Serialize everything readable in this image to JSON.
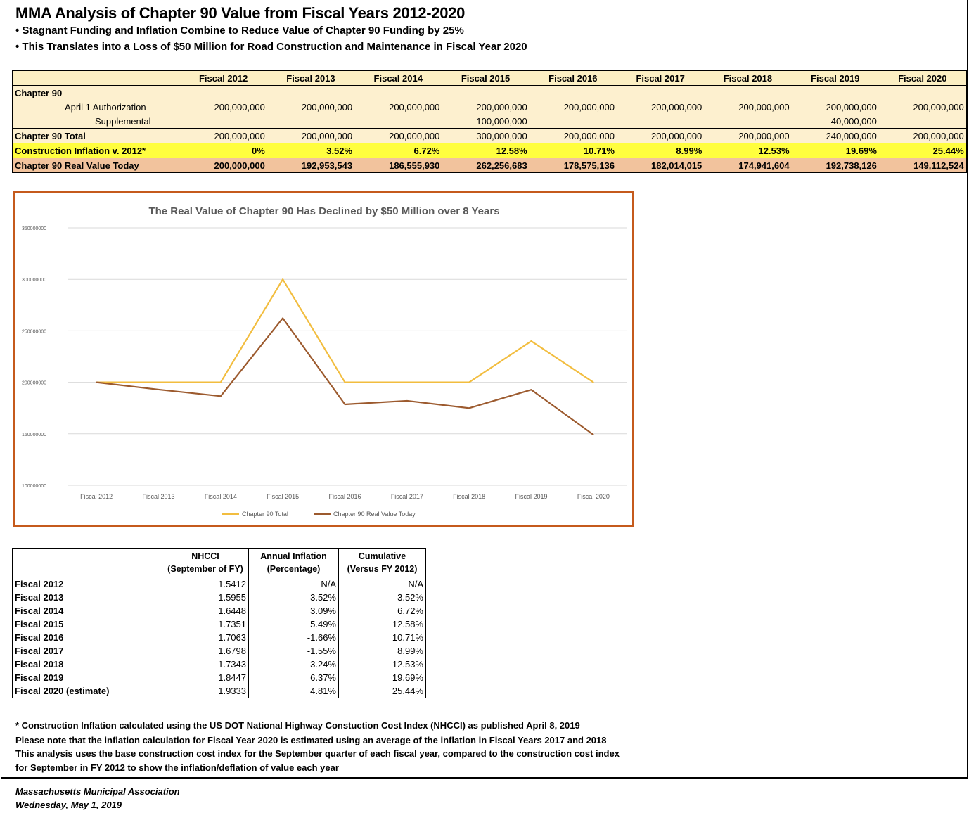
{
  "title": "MMA Analysis of Chapter 90 Value from Fiscal Years 2012-2020",
  "bullets": [
    "• Stagnant Funding and Inflation Combine to Reduce Value of Chapter 90 Funding by 25%",
    "• This Translates into a Loss of $50 Million for Road Construction and Maintenance in Fiscal Year 2020"
  ],
  "main_table": {
    "years": [
      "Fiscal 2012",
      "Fiscal 2013",
      "Fiscal 2014",
      "Fiscal 2015",
      "Fiscal 2016",
      "Fiscal 2017",
      "Fiscal 2018",
      "Fiscal 2019",
      "Fiscal 2020"
    ],
    "section_label": "Chapter 90",
    "april_label": "April 1 Authorization",
    "april": [
      "200,000,000",
      "200,000,000",
      "200,000,000",
      "200,000,000",
      "200,000,000",
      "200,000,000",
      "200,000,000",
      "200,000,000",
      "200,000,000"
    ],
    "supp_label": "Supplemental",
    "supp": [
      "",
      "",
      "",
      "100,000,000",
      "",
      "",
      "",
      "40,000,000",
      ""
    ],
    "total_label": "Chapter 90 Total",
    "total": [
      "200,000,000",
      "200,000,000",
      "200,000,000",
      "300,000,000",
      "200,000,000",
      "200,000,000",
      "200,000,000",
      "240,000,000",
      "200,000,000"
    ],
    "infl_label": "Construction Inflation v. 2012*",
    "infl": [
      "0%",
      "3.52%",
      "6.72%",
      "12.58%",
      "10.71%",
      "8.99%",
      "12.53%",
      "19.69%",
      "25.44%"
    ],
    "real_label": "Chapter 90 Real Value Today",
    "real": [
      "200,000,000",
      "192,953,543",
      "186,555,930",
      "262,256,683",
      "178,575,136",
      "182,014,015",
      "174,941,604",
      "192,738,126",
      "149,112,524"
    ]
  },
  "chart_data": {
    "type": "line",
    "title": "The Real Value of Chapter 90 Has Declined by $50 Million over 8 Years",
    "x": [
      "Fiscal 2012",
      "Fiscal 2013",
      "Fiscal 2014",
      "Fiscal 2015",
      "Fiscal 2016",
      "Fiscal 2017",
      "Fiscal 2018",
      "Fiscal 2019",
      "Fiscal 2020"
    ],
    "series": [
      {
        "name": "Chapter 90 Total",
        "color": "#f2bd3f",
        "values": [
          200000000,
          200000000,
          200000000,
          300000000,
          200000000,
          200000000,
          200000000,
          240000000,
          200000000
        ]
      },
      {
        "name": "Chapter 90 Real Value Today",
        "color": "#9c5a2e",
        "values": [
          200000000,
          192953543,
          186555930,
          262256683,
          178575136,
          182014015,
          174941604,
          192738126,
          149112524
        ]
      }
    ],
    "ylim": [
      100000000,
      350000000
    ],
    "yticks": [
      "350000000",
      "300000000",
      "250000000",
      "200000000",
      "150000000",
      "100000000"
    ],
    "grid": true,
    "legend": "bottom"
  },
  "nhcci_table": {
    "headers": [
      [
        "NHCCI",
        "(September of FY)"
      ],
      [
        "Annual Inflation",
        "(Percentage)"
      ],
      [
        "Cumulative",
        "(Versus FY 2012)"
      ]
    ],
    "rows": [
      {
        "year": "Fiscal 2012",
        "nhcci": "1.5412",
        "annual": "N/A",
        "cum": "N/A"
      },
      {
        "year": "Fiscal 2013",
        "nhcci": "1.5955",
        "annual": "3.52%",
        "cum": "3.52%"
      },
      {
        "year": "Fiscal 2014",
        "nhcci": "1.6448",
        "annual": "3.09%",
        "cum": "6.72%"
      },
      {
        "year": "Fiscal 2015",
        "nhcci": "1.7351",
        "annual": "5.49%",
        "cum": "12.58%"
      },
      {
        "year": "Fiscal 2016",
        "nhcci": "1.7063",
        "annual": "-1.66%",
        "cum": "10.71%"
      },
      {
        "year": "Fiscal 2017",
        "nhcci": "1.6798",
        "annual": "-1.55%",
        "cum": "8.99%"
      },
      {
        "year": "Fiscal 2018",
        "nhcci": "1.7343",
        "annual": "3.24%",
        "cum": "12.53%"
      },
      {
        "year": "Fiscal 2019",
        "nhcci": "1.8447",
        "annual": "6.37%",
        "cum": "19.69%"
      },
      {
        "year": "Fiscal 2020 (estimate)",
        "nhcci": "1.9333",
        "annual": "4.81%",
        "cum": "25.44%"
      }
    ]
  },
  "notes": [
    "* Construction Inflation calculated using the US DOT National Highway Constuction Cost Index (NHCCI) as published April 8, 2019",
    "Please note that the inflation calculation for Fiscal Year 2020 is estimated using an average of the inflation in Fiscal Years 2017 and 2018",
    "This analysis uses the base construction cost index for the September quarter of each fiscal year, compared to the construction cost index",
    "for September in FY 2012 to show the inflation/deflation of value each year"
  ],
  "footer": {
    "org": "Massachusetts Municipal Association",
    "date": "Wednesday, May 1, 2019"
  }
}
